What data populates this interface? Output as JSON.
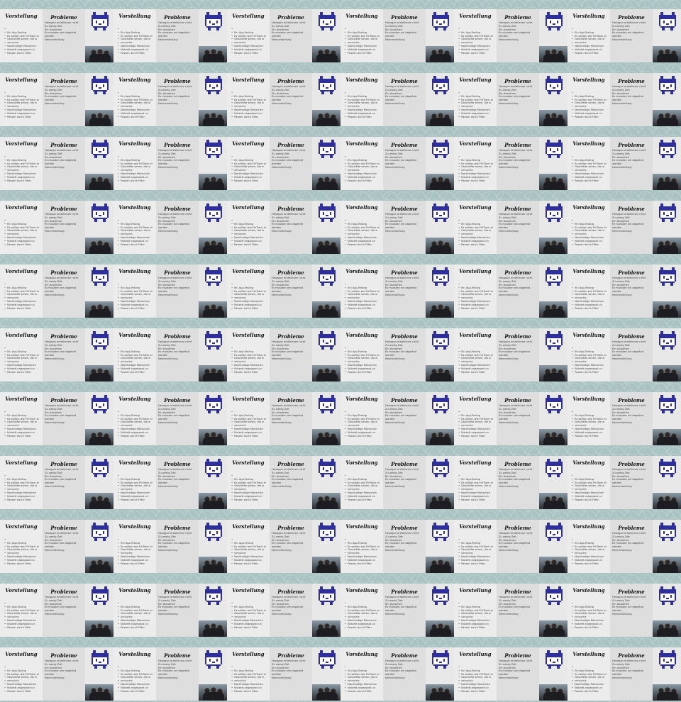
{
  "slide": {
    "left_title": "Vorstellung",
    "left_items": [
      "",
      "Ein App-Tesling",
      "Es sollten wie FiirTrack ei",
      "Geschäfte sehen, die w",
      "versuche",
      "Nachhaltige Menschen",
      "Nutzett angepasst un",
      "Passen durch Filter"
    ],
    "mid_title": "Probleme",
    "mid_items": [
      "Hexagon erstellenen nicht",
      "Zu wenig Zeit",
      "Ein Aussehen",
      "Es mussten wir abgeänd",
      "werden",
      "Nennerstellung"
    ],
    "logo_icon": "pixel-cat-logo-icon",
    "photo_icon": "group-photo-image",
    "accent_color": "#2e2f9c"
  },
  "grid": {
    "columns": 6,
    "rows": 11
  }
}
